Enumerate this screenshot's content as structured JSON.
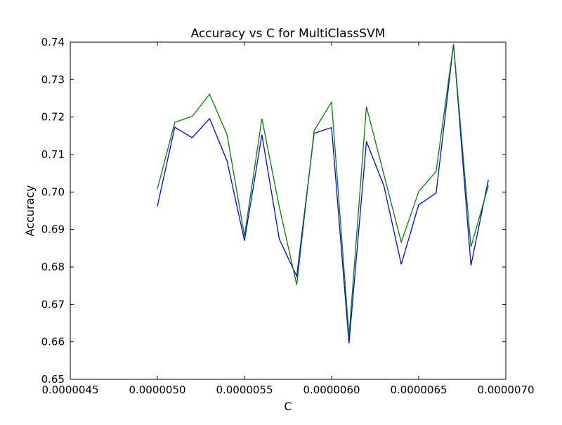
{
  "chart_data": {
    "type": "line",
    "title": "Accuracy vs C for MultiClassSVM",
    "xlabel": "C",
    "ylabel": "Accuracy",
    "xlim": [
      4.5e-06,
      7e-06
    ],
    "ylim": [
      0.65,
      0.74
    ],
    "x_ticks": [
      4.5e-06,
      5e-06,
      5.5e-06,
      6e-06,
      6.5e-06,
      7e-06
    ],
    "x_tick_labels": [
      "0.0000045",
      "0.0000050",
      "0.0000055",
      "0.0000060",
      "0.0000065",
      "0.0000070"
    ],
    "y_ticks": [
      0.65,
      0.66,
      0.67,
      0.68,
      0.69,
      0.7,
      0.71,
      0.72,
      0.73,
      0.74
    ],
    "y_tick_labels": [
      "0.65",
      "0.66",
      "0.67",
      "0.68",
      "0.69",
      "0.70",
      "0.71",
      "0.72",
      "0.73",
      "0.74"
    ],
    "grid": false,
    "x": [
      5e-06,
      5.1e-06,
      5.2e-06,
      5.3e-06,
      5.4e-06,
      5.5e-06,
      5.6e-06,
      5.7e-06,
      5.8e-06,
      5.9e-06,
      6e-06,
      6.1e-06,
      6.2e-06,
      6.3e-06,
      6.4e-06,
      6.5e-06,
      6.6e-06,
      6.7e-06,
      6.8e-06,
      6.9e-06
    ],
    "series": [
      {
        "color": "#0000ff",
        "values": [
          0.6962,
          0.7173,
          0.7145,
          0.7196,
          0.7083,
          0.687,
          0.7153,
          0.6874,
          0.6775,
          0.7157,
          0.7172,
          0.6596,
          0.7135,
          0.7017,
          0.6807,
          0.6966,
          0.6997,
          0.7395,
          0.6804,
          0.7033
        ]
      },
      {
        "color": "#008000",
        "values": [
          0.7008,
          0.7186,
          0.7202,
          0.7261,
          0.7153,
          0.6883,
          0.7196,
          0.696,
          0.6752,
          0.7164,
          0.724,
          0.6616,
          0.7228,
          0.7047,
          0.6866,
          0.7001,
          0.7055,
          0.7395,
          0.6853,
          0.7017
        ]
      }
    ]
  }
}
